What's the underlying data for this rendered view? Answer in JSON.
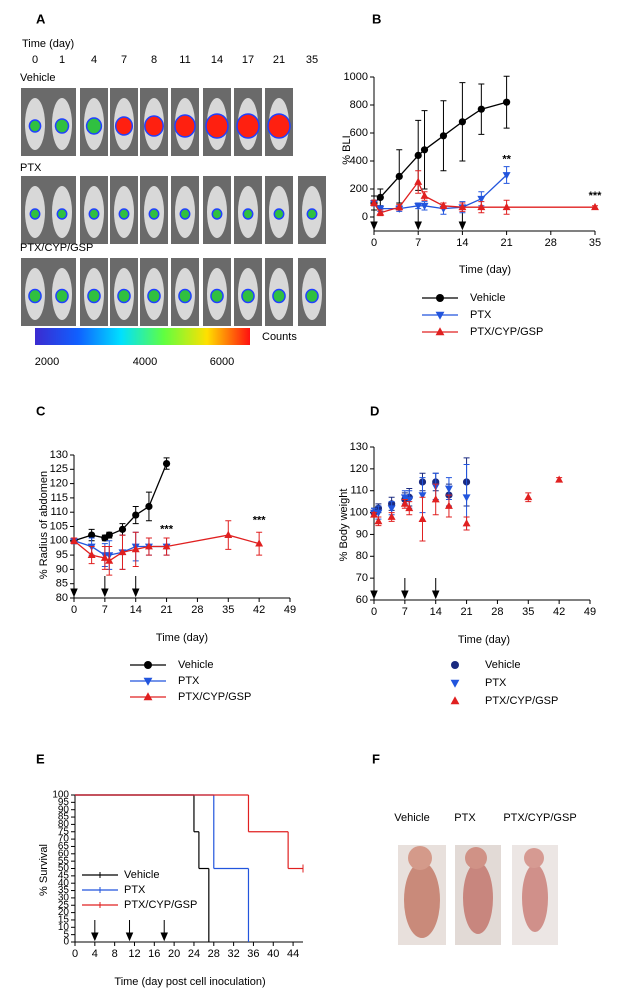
{
  "panel_a": {
    "label": "A",
    "time_label": "Time (day)",
    "days": [
      0,
      1,
      4,
      7,
      8,
      11,
      14,
      17,
      21,
      35
    ],
    "groups": [
      "Vehicle",
      "PTX",
      "PTX/CYP/GSP"
    ],
    "colorbar": {
      "ticks": [
        2000,
        4000,
        6000
      ],
      "unit": "Counts"
    }
  },
  "chart_data": [
    {
      "type": "line",
      "panel": "B",
      "xlabel": "Time (day)",
      "ylabel": "% BLI",
      "legend": "below",
      "xlim": [
        0,
        35
      ],
      "xticks": [
        0,
        7,
        14,
        21,
        28,
        35
      ],
      "ylim": [
        -100,
        1000
      ],
      "yticks": [
        0,
        200,
        400,
        600,
        800,
        1000
      ],
      "arrows": [
        0,
        7,
        14
      ],
      "annotations": [
        {
          "text": "**",
          "x": 21,
          "y": 410
        },
        {
          "text": "***",
          "x": 35,
          "y": 150
        }
      ],
      "series": [
        {
          "name": "Vehicle",
          "color": "#000000",
          "marker": "circle",
          "x": [
            0,
            1,
            4,
            7,
            8,
            11,
            14,
            17,
            21
          ],
          "values": [
            100,
            140,
            290,
            440,
            480,
            580,
            680,
            770,
            820
          ],
          "errors": [
            50,
            60,
            190,
            250,
            280,
            250,
            280,
            180,
            185
          ]
        },
        {
          "name": "PTX",
          "color": "#2255dd",
          "marker": "triangle-down",
          "x": [
            0,
            1,
            4,
            7,
            8,
            11,
            14,
            17,
            21
          ],
          "values": [
            100,
            60,
            60,
            80,
            80,
            60,
            70,
            130,
            300
          ],
          "errors": [
            20,
            20,
            20,
            20,
            30,
            40,
            40,
            50,
            60
          ]
        },
        {
          "name": "PTX/CYP/GSP",
          "color": "#e02020",
          "marker": "triangle-up",
          "x": [
            0,
            1,
            4,
            7,
            8,
            11,
            14,
            17,
            21,
            35
          ],
          "values": [
            100,
            30,
            70,
            250,
            150,
            80,
            70,
            70,
            70,
            70
          ],
          "errors": [
            20,
            20,
            20,
            80,
            30,
            20,
            30,
            40,
            50,
            10
          ]
        }
      ]
    },
    {
      "type": "line",
      "panel": "C",
      "xlabel": "Time (day)",
      "ylabel": "%  Radius of abdomen",
      "legend": "below",
      "xlim": [
        0,
        49
      ],
      "xticks": [
        0,
        7,
        14,
        21,
        28,
        35,
        42,
        49
      ],
      "ylim": [
        80,
        130
      ],
      "yticks": [
        80,
        85,
        90,
        95,
        100,
        105,
        110,
        115,
        120,
        125,
        130
      ],
      "arrows": [
        0,
        7,
        14
      ],
      "annotations": [
        {
          "text": "***",
          "x": 21,
          "y": 104
        },
        {
          "text": "***",
          "x": 42,
          "y": 107
        }
      ],
      "series": [
        {
          "name": "Vehicle",
          "color": "#000000",
          "marker": "circle",
          "x": [
            0,
            4,
            7,
            8,
            11,
            14,
            17,
            21
          ],
          "values": [
            100,
            102,
            101,
            102,
            104,
            109,
            112,
            127
          ],
          "errors": [
            1,
            2,
            1,
            1,
            2,
            3,
            5,
            2
          ]
        },
        {
          "name": "PTX",
          "color": "#2255dd",
          "marker": "triangle-down",
          "x": [
            0,
            4,
            7,
            8,
            11,
            14,
            17,
            21
          ],
          "values": [
            100,
            98,
            95,
            95,
            96,
            98,
            98,
            98
          ],
          "errors": [
            1,
            3,
            4,
            5,
            6,
            5,
            3,
            3
          ]
        },
        {
          "name": "PTX/CYP/GSP",
          "color": "#e02020",
          "marker": "triangle-up",
          "x": [
            0,
            4,
            7,
            8,
            11,
            14,
            17,
            21,
            35,
            42
          ],
          "values": [
            100,
            95,
            94,
            93,
            96,
            97,
            98,
            98,
            102,
            99
          ],
          "errors": [
            1,
            3,
            4,
            5,
            6,
            6,
            3,
            3,
            5,
            4
          ]
        }
      ]
    },
    {
      "type": "scatter",
      "panel": "D",
      "xlabel": "Time (day)",
      "ylabel": "% Body weight",
      "legend": "below",
      "xlim": [
        0,
        49
      ],
      "xticks": [
        0,
        7,
        14,
        21,
        28,
        35,
        42,
        49
      ],
      "ylim": [
        60,
        130
      ],
      "yticks": [
        60,
        70,
        80,
        90,
        100,
        110,
        120,
        130
      ],
      "arrows": [
        0,
        7,
        14
      ],
      "series": [
        {
          "name": "Vehicle",
          "color": "#1a2a80",
          "marker": "circle",
          "x": [
            0,
            1,
            4,
            7,
            8,
            11,
            14,
            17,
            21
          ],
          "values": [
            100,
            102,
            104,
            106,
            107,
            114,
            114,
            108,
            114
          ],
          "errors": [
            2,
            2,
            3,
            3,
            4,
            4,
            4,
            5,
            11
          ]
        },
        {
          "name": "PTX",
          "color": "#2255dd",
          "marker": "triangle-down",
          "x": [
            0,
            1,
            4,
            7,
            8,
            11,
            14,
            17,
            21
          ],
          "values": [
            100,
            100,
            102,
            107,
            106,
            108,
            112,
            111,
            107
          ],
          "errors": [
            2,
            3,
            3,
            3,
            4,
            8,
            6,
            5,
            15
          ]
        },
        {
          "name": "PTX/CYP/GSP",
          "color": "#e02020",
          "marker": "triangle-up",
          "x": [
            0,
            1,
            4,
            7,
            8,
            11,
            14,
            17,
            21,
            35,
            42
          ],
          "values": [
            99,
            96,
            98,
            104,
            102,
            97,
            106,
            103,
            95,
            107,
            115
          ],
          "errors": [
            1,
            2,
            2,
            2,
            3,
            10,
            7,
            5,
            3,
            2,
            1
          ]
        }
      ]
    },
    {
      "type": "step",
      "panel": "E",
      "xlabel": "Time (day post cell inoculation)",
      "ylabel": "% Survival",
      "legend": "inside-lower-left",
      "xlim": [
        0,
        46
      ],
      "xticks": [
        0,
        4,
        8,
        12,
        16,
        20,
        24,
        28,
        32,
        36,
        40,
        44
      ],
      "ylim": [
        0,
        100
      ],
      "yticks": [
        0,
        5,
        10,
        15,
        20,
        25,
        30,
        35,
        40,
        45,
        50,
        55,
        60,
        65,
        70,
        75,
        80,
        85,
        90,
        95,
        100
      ],
      "arrows": [
        4,
        11,
        18
      ],
      "series": [
        {
          "name": "Vehicle",
          "color": "#000000",
          "x": [
            0,
            24,
            25,
            27
          ],
          "values": [
            100,
            75,
            50,
            0
          ]
        },
        {
          "name": "PTX",
          "color": "#2255dd",
          "x": [
            0,
            28,
            35
          ],
          "values": [
            100,
            50,
            0
          ]
        },
        {
          "name": "PTX/CYP/GSP",
          "color": "#e02020",
          "x": [
            0,
            35,
            43,
            46
          ],
          "values": [
            100,
            75,
            50,
            50
          ]
        }
      ]
    }
  ],
  "panel_f": {
    "label": "F",
    "groups": [
      "Vehicle",
      "PTX",
      "PTX/CYP/GSP"
    ]
  }
}
